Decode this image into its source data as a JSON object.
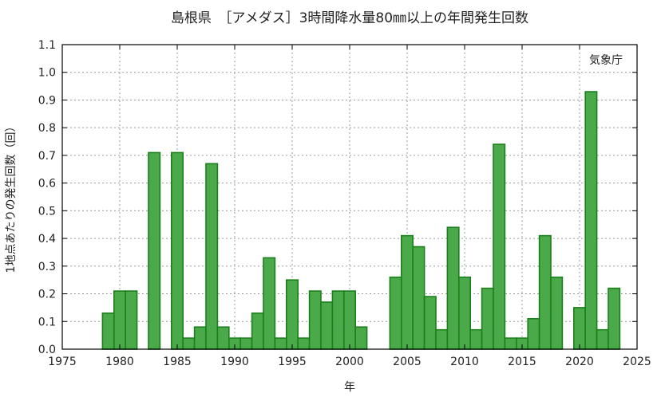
{
  "chart_data": {
    "type": "bar",
    "title": "島根県　［アメダス］3時間降水量80㎜以上の年間発生回数",
    "xlabel": "年",
    "ylabel": "1地点あたりの発生回数（回）",
    "source_label": "気象庁",
    "xlim": [
      1975,
      2025
    ],
    "ylim": [
      0,
      1.1
    ],
    "x_ticks": [
      1975,
      1980,
      1985,
      1990,
      1995,
      2000,
      2005,
      2010,
      2015,
      2020,
      2025
    ],
    "y_ticks": [
      0.0,
      0.1,
      0.2,
      0.3,
      0.4,
      0.5,
      0.6,
      0.7,
      0.8,
      0.9,
      1.0,
      1.1
    ],
    "grid": true,
    "colors": {
      "bar_fill": "#4aaa49",
      "bar_edge": "#1b7f1b"
    },
    "years": [
      1979,
      1980,
      1981,
      1982,
      1983,
      1984,
      1985,
      1986,
      1987,
      1988,
      1989,
      1990,
      1991,
      1992,
      1993,
      1994,
      1995,
      1996,
      1997,
      1998,
      1999,
      2000,
      2001,
      2002,
      2003,
      2004,
      2005,
      2006,
      2007,
      2008,
      2009,
      2010,
      2011,
      2012,
      2013,
      2014,
      2015,
      2016,
      2017,
      2018,
      2019,
      2020,
      2021,
      2022,
      2023
    ],
    "values": [
      0.13,
      0.21,
      0.21,
      0,
      0.71,
      0,
      0.71,
      0.04,
      0.08,
      0.67,
      0.08,
      0.04,
      0.04,
      0.13,
      0.33,
      0.04,
      0.25,
      0.04,
      0.21,
      0.17,
      0.21,
      0.21,
      0.08,
      0,
      0,
      0.26,
      0.41,
      0.37,
      0.19,
      0.07,
      0.44,
      0.26,
      0.07,
      0.22,
      0.74,
      0.04,
      0.04,
      0.11,
      0.41,
      0.26,
      0,
      0.15,
      0.93,
      0.07,
      0.22
    ]
  }
}
